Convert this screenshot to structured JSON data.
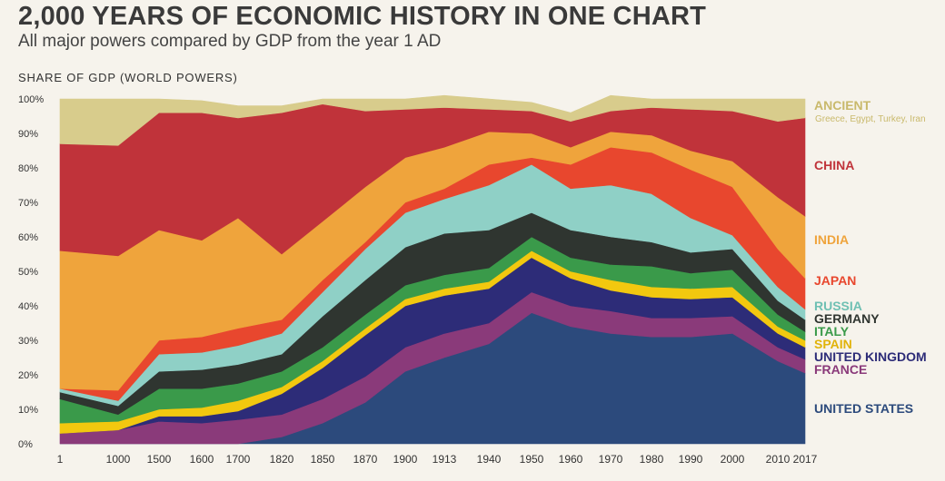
{
  "header": {
    "title": "2,000 YEARS OF ECONOMIC HISTORY IN ONE CHART",
    "subtitle": "All major powers compared by GDP from the year 1 AD",
    "y_axis_label": "SHARE OF GDP (WORLD POWERS)"
  },
  "chart_data": {
    "type": "area",
    "stacked": true,
    "ylabel": "SHARE OF GDP (WORLD POWERS)",
    "ylim": [
      0,
      100
    ],
    "yticks": [
      "0%",
      "10%",
      "20%",
      "30%",
      "40%",
      "50%",
      "60%",
      "70%",
      "80%",
      "90%",
      "100%"
    ],
    "x": [
      "1",
      "1000",
      "1500",
      "1600",
      "1700",
      "1820",
      "1850",
      "1870",
      "1900",
      "1913",
      "1940",
      "1950",
      "1960",
      "1970",
      "1980",
      "1990",
      "2000",
      "2010",
      "2017"
    ],
    "grid": false,
    "legend": "right",
    "series": [
      {
        "name": "UNITED STATES",
        "color": "#2c4a7c",
        "values": [
          0,
          0,
          0,
          0,
          0,
          2,
          6,
          12,
          21,
          25,
          29,
          38,
          34,
          32,
          31,
          31,
          32,
          24,
          20.5
        ]
      },
      {
        "name": "FRANCE",
        "color": "#8a3a7a",
        "values": [
          3,
          4,
          6.5,
          6,
          7,
          6.5,
          7,
          7.5,
          7,
          7,
          6,
          6,
          6,
          6.5,
          5.5,
          5.5,
          5,
          4,
          4
        ]
      },
      {
        "name": "UNITED KINGDOM",
        "color": "#2d2c78",
        "values": [
          0,
          0,
          1.5,
          2,
          2.5,
          6,
          9,
          12,
          12,
          11,
          10,
          10,
          8,
          6,
          6,
          5.5,
          5.5,
          4,
          3.5
        ]
      },
      {
        "name": "SPAIN",
        "color": "#f2c80f",
        "values": [
          3,
          2.5,
          2,
          2.5,
          3,
          2,
          2,
          2,
          2,
          2,
          2,
          2,
          2,
          3,
          3,
          3,
          3,
          2,
          2
        ]
      },
      {
        "name": "ITALY",
        "color": "#3a9a4a",
        "values": [
          7,
          2,
          6,
          5.5,
          5,
          4.5,
          4,
          4,
          4,
          4,
          4,
          4,
          4,
          4.5,
          6,
          4.5,
          5,
          3.5,
          2.5
        ]
      },
      {
        "name": "GERMANY",
        "color": "#2f3530",
        "values": [
          2,
          2.5,
          5,
          5.5,
          5.5,
          5,
          9,
          10,
          11,
          12,
          11,
          7,
          8,
          8,
          7,
          6,
          6,
          4,
          3.5
        ]
      },
      {
        "name": "RUSSIA",
        "color": "#8fd0c6",
        "values": [
          1,
          1.5,
          5,
          5,
          5.5,
          6,
          7,
          9,
          10,
          10,
          13,
          14,
          12,
          15,
          14,
          10,
          4,
          4,
          3
        ]
      },
      {
        "name": "JAPAN",
        "color": "#e8472e",
        "values": [
          0,
          3,
          4,
          4.5,
          5,
          4,
          3.5,
          2,
          3,
          3,
          6,
          2,
          7,
          11,
          12,
          14,
          14,
          11,
          9
        ]
      },
      {
        "name": "INDIA",
        "color": "#efa43c",
        "values": [
          40,
          39,
          32,
          28,
          32,
          19,
          17,
          16,
          13,
          12,
          9.5,
          7,
          5,
          4.5,
          5,
          5.5,
          7.5,
          15,
          18
        ]
      },
      {
        "name": "CHINA",
        "color": "#c0333a",
        "values": [
          31,
          32,
          34,
          37,
          29,
          41,
          34,
          22,
          14,
          11.5,
          6.5,
          6.5,
          7.5,
          6,
          8,
          12,
          14.5,
          22,
          28.5
        ]
      },
      {
        "name": "ANCIENT",
        "color": "#d8cc8c",
        "values": [
          13,
          13.5,
          4,
          3.5,
          3.5,
          2,
          1.5,
          3.5,
          3,
          3.5,
          3,
          2.5,
          2.5,
          4.5,
          2.5,
          3,
          3.5,
          6.5,
          5.5
        ]
      }
    ],
    "annotations": [
      {
        "series": "ANCIENT",
        "text": "Greece, Egypt, Turkey, Iran"
      }
    ]
  },
  "colors": {
    "background": "#f6f3ec",
    "title": "#3a3a3a"
  }
}
